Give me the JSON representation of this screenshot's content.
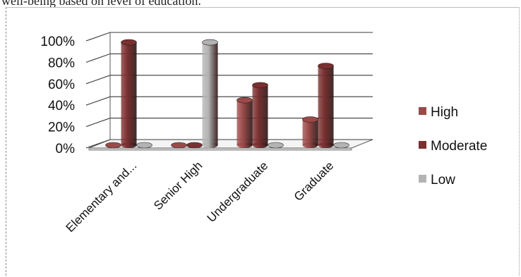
{
  "caption": "well-being based on level of education.",
  "chart_data": {
    "type": "bar",
    "title": "",
    "xlabel": "",
    "ylabel": "",
    "ylim": [
      0,
      100
    ],
    "y_ticks": [
      "0%",
      "20%",
      "40%",
      "60%",
      "80%",
      "100%"
    ],
    "categories": [
      "Elementary and...",
      "Senior High",
      "Undergraduate",
      "Graduate"
    ],
    "series": [
      {
        "name": "High",
        "values": [
          0,
          0,
          42,
          24
        ],
        "color": "#9a4a48"
      },
      {
        "name": "Moderate",
        "values": [
          96,
          0,
          56,
          74
        ],
        "color": "#7a2f30"
      },
      {
        "name": "Low",
        "values": [
          0,
          96,
          0,
          0
        ],
        "color": "#b3b3b3"
      }
    ],
    "legend_position": "right",
    "grid": true,
    "style": "3d cylinders"
  }
}
